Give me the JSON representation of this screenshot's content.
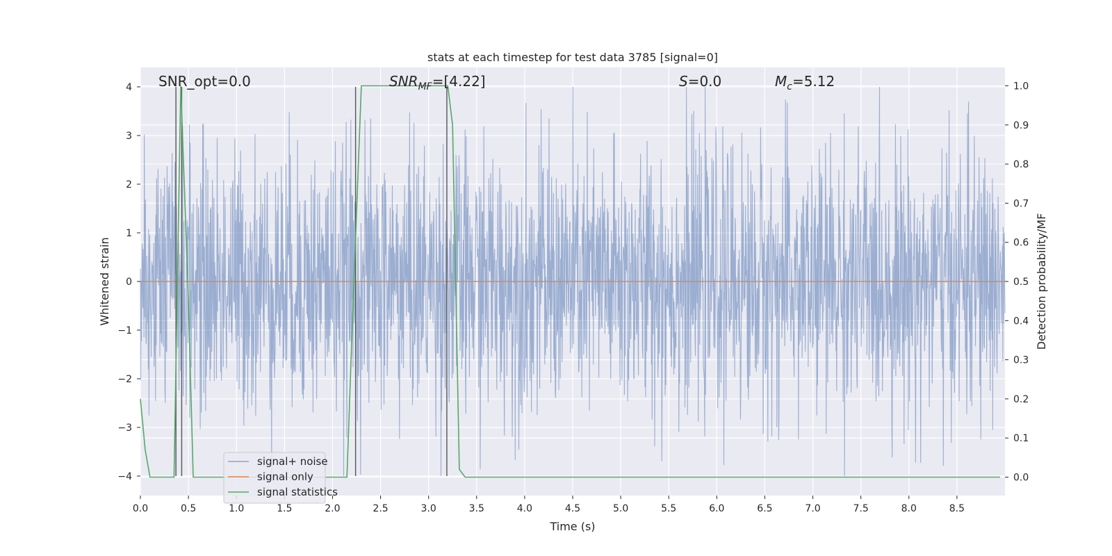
{
  "chart_data": {
    "type": "line",
    "title": "stats at each timestep for test data 3785 [signal=0]",
    "xlabel": "Time (s)",
    "ylabel": "Whitened strain",
    "y2label": "Detection probability/MF",
    "xlim": [
      0,
      9.0
    ],
    "ylim": [
      -4.4,
      4.4
    ],
    "y2lim": [
      -0.047,
      1.047
    ],
    "x_ticks": [
      0,
      0.5,
      1,
      1.5,
      2,
      2.5,
      3,
      3.5,
      4,
      4.5,
      5,
      5.5,
      6,
      6.5,
      7,
      7.5,
      8,
      8.5
    ],
    "x_tick_labels": [
      "0.0",
      "0.5",
      "1.0",
      "1.5",
      "2.0",
      "2.5",
      "3.0",
      "3.5",
      "4.0",
      "4.5",
      "5.0",
      "5.5",
      "6.0",
      "6.5",
      "7.0",
      "7.5",
      "8.0",
      "8.5"
    ],
    "y_ticks": [
      -4,
      -3,
      -2,
      -1,
      0,
      1,
      2,
      3,
      4
    ],
    "y_tick_labels": [
      "−4",
      "−3",
      "−2",
      "−1",
      "0",
      "1",
      "2",
      "3",
      "4"
    ],
    "y2_ticks": [
      0,
      0.1,
      0.2,
      0.3,
      0.4,
      0.5,
      0.6,
      0.7,
      0.8,
      0.9,
      1.0
    ],
    "y2_tick_labels": [
      "0.0",
      "0.1",
      "0.2",
      "0.3",
      "0.4",
      "0.5",
      "0.6",
      "0.7",
      "0.8",
      "0.9",
      "1.0"
    ],
    "grid": true,
    "legend_position": "lower-left",
    "series": [
      {
        "name": "signal+ noise",
        "color": "#4c72b0",
        "axis": "left",
        "style": "dense noise, amplitude ~1.6 sigma, peaks to about ±4"
      },
      {
        "name": "signal only",
        "color": "#dd8452",
        "axis": "left",
        "values_note": "flat at 0"
      },
      {
        "name": "signal statistics",
        "color": "#55a868",
        "axis": "right",
        "x": [
          0.0,
          0.05,
          0.1,
          0.2,
          0.3,
          0.35,
          0.42,
          0.5,
          0.55,
          0.6,
          1.0,
          1.5,
          2.0,
          2.15,
          2.2,
          2.3,
          2.5,
          3.0,
          3.2,
          3.25,
          3.32,
          3.38,
          3.5,
          4.0,
          5.0,
          6.0,
          7.0,
          8.0,
          8.95
        ],
        "y": [
          0.2,
          0.07,
          0.0,
          0.0,
          0.0,
          0.0,
          1.0,
          0.45,
          0.0,
          0.0,
          0.0,
          0.0,
          0.0,
          0.0,
          0.35,
          1.0,
          1.0,
          1.0,
          1.0,
          0.9,
          0.02,
          0.0,
          0.0,
          0.0,
          0.0,
          0.0,
          0.0,
          0.0,
          0.0
        ]
      }
    ],
    "vlines_x": [
      0.37,
      0.43,
      2.24,
      3.19
    ],
    "vline_color": "#555555",
    "annotations": {
      "snr_opt": "SNR_opt=0.0",
      "snr_mf_main": "SNR",
      "snr_mf_sub": "MF",
      "snr_mf_value": "=[4.22]",
      "s_sym": "S",
      "s_value": "=0.0",
      "mc_sym": "M",
      "mc_sub": "c",
      "mc_value": "=5.12"
    },
    "legend": [
      {
        "label": "signal+ noise",
        "color": "#4c72b0"
      },
      {
        "label": "signal only",
        "color": "#dd8452"
      },
      {
        "label": "signal statistics",
        "color": "#55a868"
      }
    ],
    "colors": {
      "plot_bg": "#eaeaf2",
      "grid": "#ffffff",
      "noise_fill": "#9aabcf"
    }
  }
}
